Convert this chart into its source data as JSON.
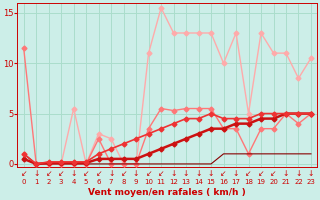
{
  "bg_color": "#cceee8",
  "grid_color": "#aaddcc",
  "xlabel": "Vent moyen/en rafales ( km/h )",
  "label_color": "#cc0000",
  "x_ticks": [
    0,
    1,
    2,
    3,
    4,
    5,
    6,
    7,
    8,
    9,
    10,
    11,
    12,
    13,
    14,
    15,
    16,
    17,
    18,
    19,
    20,
    21,
    22,
    23
  ],
  "y_ticks": [
    0,
    5,
    10,
    15
  ],
  "ylim": [
    -0.3,
    16.0
  ],
  "xlim": [
    -0.5,
    23.5
  ],
  "series": [
    {
      "x": [
        0,
        1,
        2,
        3,
        4,
        5,
        6,
        7,
        8,
        9,
        10,
        11,
        12,
        13,
        14,
        15,
        16,
        17,
        18,
        19,
        20,
        21,
        22,
        23
      ],
      "y": [
        1.0,
        0.0,
        0.0,
        0.0,
        5.5,
        0.0,
        3.0,
        2.5,
        0.0,
        0.0,
        11.0,
        15.5,
        13.0,
        13.0,
        13.0,
        13.0,
        10.0,
        13.0,
        5.0,
        13.0,
        11.0,
        11.0,
        8.5,
        10.5
      ],
      "color": "#ffaaaa",
      "lw": 1.0,
      "marker": "D",
      "ms": 2.5,
      "alpha": 1.0
    },
    {
      "x": [
        0,
        1,
        2,
        3,
        4,
        5,
        6,
        7,
        8,
        9,
        10,
        11,
        12,
        13,
        14,
        15,
        16,
        17,
        18,
        19,
        20,
        21,
        22,
        23
      ],
      "y": [
        11.5,
        0.0,
        0.0,
        0.0,
        0.0,
        0.0,
        2.5,
        0.0,
        0.0,
        0.0,
        3.5,
        5.5,
        5.3,
        5.5,
        5.5,
        5.5,
        3.5,
        3.5,
        1.0,
        3.5,
        3.5,
        5.0,
        4.0,
        5.0
      ],
      "color": "#ff7777",
      "lw": 1.0,
      "marker": "D",
      "ms": 2.5,
      "alpha": 1.0
    },
    {
      "x": [
        0,
        1,
        2,
        3,
        4,
        5,
        6,
        7,
        8,
        9,
        10,
        11,
        12,
        13,
        14,
        15,
        16,
        17,
        18,
        19,
        20,
        21,
        22,
        23
      ],
      "y": [
        1.0,
        0.0,
        0.0,
        0.0,
        0.0,
        0.0,
        0.0,
        0.0,
        0.0,
        0.0,
        0.0,
        0.0,
        0.0,
        0.0,
        0.0,
        0.0,
        1.0,
        1.0,
        1.0,
        1.0,
        1.0,
        1.0,
        1.0,
        1.0
      ],
      "color": "#880000",
      "lw": 0.8,
      "marker": null,
      "ms": 0,
      "alpha": 1.0
    },
    {
      "x": [
        0,
        1,
        2,
        3,
        4,
        5,
        6,
        7,
        8,
        9,
        10,
        11,
        12,
        13,
        14,
        15,
        16,
        17,
        18,
        19,
        20,
        21,
        22,
        23
      ],
      "y": [
        0.5,
        0.0,
        0.1,
        0.1,
        0.1,
        0.1,
        0.5,
        0.5,
        0.5,
        0.5,
        1.0,
        1.5,
        2.0,
        2.5,
        3.0,
        3.5,
        3.5,
        4.0,
        4.0,
        4.5,
        4.5,
        5.0,
        5.0,
        5.0
      ],
      "color": "#cc1111",
      "lw": 1.8,
      "marker": "D",
      "ms": 2.5,
      "alpha": 1.0
    },
    {
      "x": [
        0,
        1,
        2,
        3,
        4,
        5,
        6,
        7,
        8,
        9,
        10,
        11,
        12,
        13,
        14,
        15,
        16,
        17,
        18,
        19,
        20,
        21,
        22,
        23
      ],
      "y": [
        1.0,
        0.0,
        0.2,
        0.2,
        0.2,
        0.2,
        1.0,
        1.5,
        2.0,
        2.5,
        3.0,
        3.5,
        4.0,
        4.5,
        4.5,
        5.0,
        4.5,
        4.5,
        4.5,
        5.0,
        5.0,
        5.0,
        5.0,
        5.0
      ],
      "color": "#ee3333",
      "lw": 1.2,
      "marker": "D",
      "ms": 2.5,
      "alpha": 1.0
    }
  ],
  "wind_arrows": {
    "x": [
      0,
      1,
      2,
      3,
      4,
      5,
      6,
      7,
      8,
      9,
      10,
      11,
      12,
      13,
      14,
      15,
      16,
      17,
      18,
      19,
      20,
      21,
      22,
      23
    ],
    "symbols": [
      "↙",
      "↓",
      "↙",
      "↙",
      "↓",
      "↙",
      "↙",
      "↓",
      "↙",
      "↓",
      "↙",
      "↙",
      "↓",
      "↓",
      "↓",
      "↓",
      "↙",
      "↓",
      "↙",
      "↙",
      "↙",
      "↓",
      "↓",
      "↓"
    ],
    "color": "#cc0000"
  }
}
